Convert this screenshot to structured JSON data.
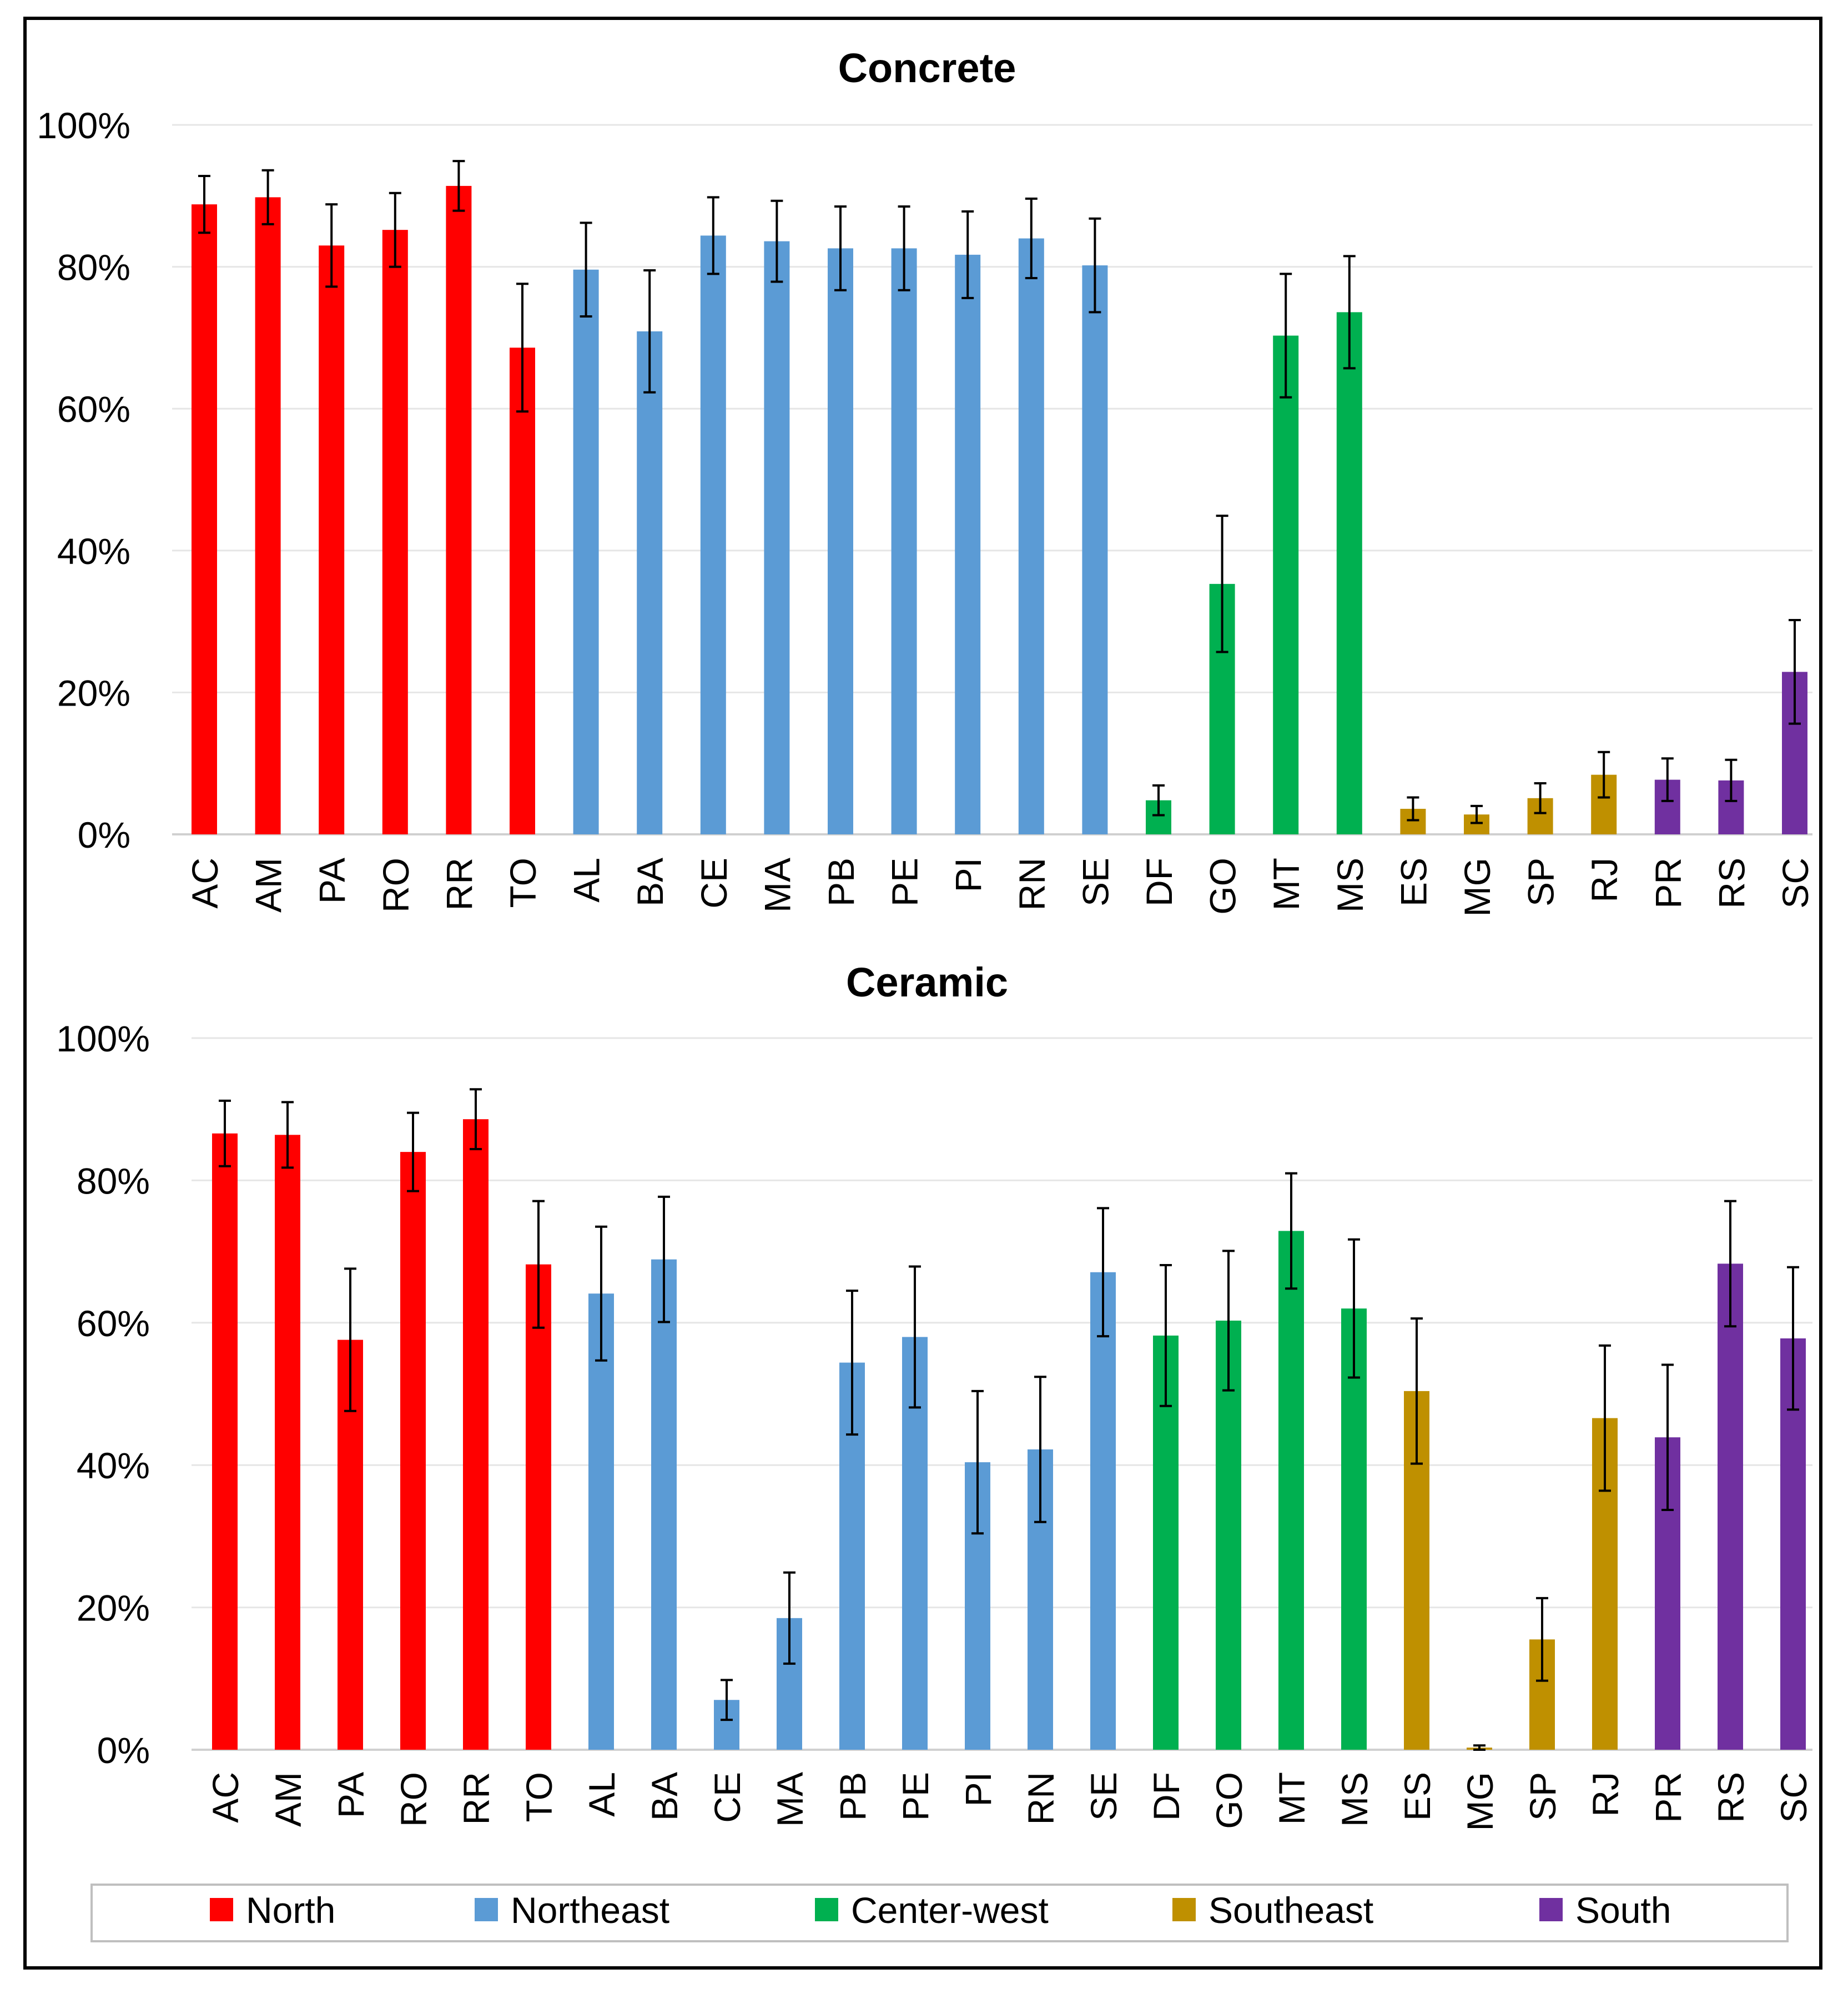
{
  "chart_data": [
    {
      "type": "bar",
      "title": "Concrete",
      "xlabel": "",
      "ylabel": "",
      "ylim": [
        0,
        100
      ],
      "yticks": [
        "0%",
        "20%",
        "40%",
        "60%",
        "80%",
        "100%"
      ],
      "grid": true,
      "categories": [
        "AC",
        "AM",
        "PA",
        "RO",
        "RR",
        "TO",
        "AL",
        "BA",
        "CE",
        "MA",
        "PB",
        "PE",
        "PI",
        "RN",
        "SE",
        "DF",
        "GO",
        "MT",
        "MS",
        "ES",
        "MG",
        "SP",
        "RJ",
        "PR",
        "RS",
        "SC"
      ],
      "values": [
        88.8,
        89.8,
        83.0,
        85.2,
        91.4,
        68.6,
        79.6,
        70.9,
        84.4,
        83.6,
        82.6,
        82.6,
        81.7,
        84.0,
        80.2,
        4.8,
        35.3,
        70.3,
        73.6,
        3.6,
        2.8,
        5.1,
        8.4,
        7.7,
        7.6,
        22.9
      ],
      "error": [
        4.0,
        3.8,
        5.8,
        5.2,
        3.5,
        9.0,
        6.6,
        8.6,
        5.4,
        5.7,
        5.9,
        5.9,
        6.1,
        5.6,
        6.6,
        2.1,
        9.6,
        8.7,
        7.9,
        1.6,
        1.2,
        2.1,
        3.2,
        3.0,
        2.9,
        7.3
      ],
      "regions": [
        "North",
        "North",
        "North",
        "North",
        "North",
        "North",
        "Northeast",
        "Northeast",
        "Northeast",
        "Northeast",
        "Northeast",
        "Northeast",
        "Northeast",
        "Northeast",
        "Northeast",
        "Center-west",
        "Center-west",
        "Center-west",
        "Center-west",
        "Southeast",
        "Southeast",
        "Southeast",
        "Southeast",
        "South",
        "South",
        "South"
      ]
    },
    {
      "type": "bar",
      "title": "Ceramic",
      "xlabel": "",
      "ylabel": "",
      "ylim": [
        0,
        100
      ],
      "yticks": [
        "0%",
        "20%",
        "40%",
        "60%",
        "80%",
        "100%"
      ],
      "grid": true,
      "categories": [
        "AC",
        "AM",
        "PA",
        "RO",
        "RR",
        "TO",
        "AL",
        "BA",
        "CE",
        "MA",
        "PB",
        "PE",
        "PI",
        "RN",
        "SE",
        "DF",
        "GO",
        "MT",
        "MS",
        "ES",
        "MG",
        "SP",
        "RJ",
        "PR",
        "RS",
        "SC"
      ],
      "values": [
        86.6,
        86.4,
        57.6,
        84.0,
        88.6,
        68.2,
        64.1,
        68.9,
        7.0,
        18.5,
        54.4,
        58.0,
        40.4,
        42.2,
        67.1,
        58.2,
        60.3,
        72.9,
        62.0,
        50.4,
        0.3,
        15.5,
        46.6,
        43.9,
        68.3,
        57.8
      ],
      "error": [
        4.6,
        4.6,
        10.0,
        5.5,
        4.2,
        8.9,
        9.4,
        8.8,
        2.8,
        6.4,
        10.1,
        9.9,
        10.0,
        10.2,
        9.0,
        9.9,
        9.8,
        8.1,
        9.7,
        10.2,
        0.3,
        5.8,
        10.2,
        10.2,
        8.8,
        10.0
      ],
      "regions": [
        "North",
        "North",
        "North",
        "North",
        "North",
        "North",
        "Northeast",
        "Northeast",
        "Northeast",
        "Northeast",
        "Northeast",
        "Northeast",
        "Northeast",
        "Northeast",
        "Northeast",
        "Center-west",
        "Center-west",
        "Center-west",
        "Center-west",
        "Southeast",
        "Southeast",
        "Southeast",
        "Southeast",
        "South",
        "South",
        "South"
      ]
    }
  ],
  "legend": {
    "placement": "bottom",
    "items": [
      {
        "label": "North",
        "color": "#ff0000"
      },
      {
        "label": "Northeast",
        "color": "#5b9bd5"
      },
      {
        "label": "Center-west",
        "color": "#00b050"
      },
      {
        "label": "Southeast",
        "color": "#bf9000"
      },
      {
        "label": "South",
        "color": "#7030a0"
      }
    ]
  },
  "colors": {
    "North": "#ff0000",
    "Northeast": "#5b9bd5",
    "Center-west": "#00b050",
    "Southeast": "#bf9000",
    "South": "#7030a0"
  }
}
